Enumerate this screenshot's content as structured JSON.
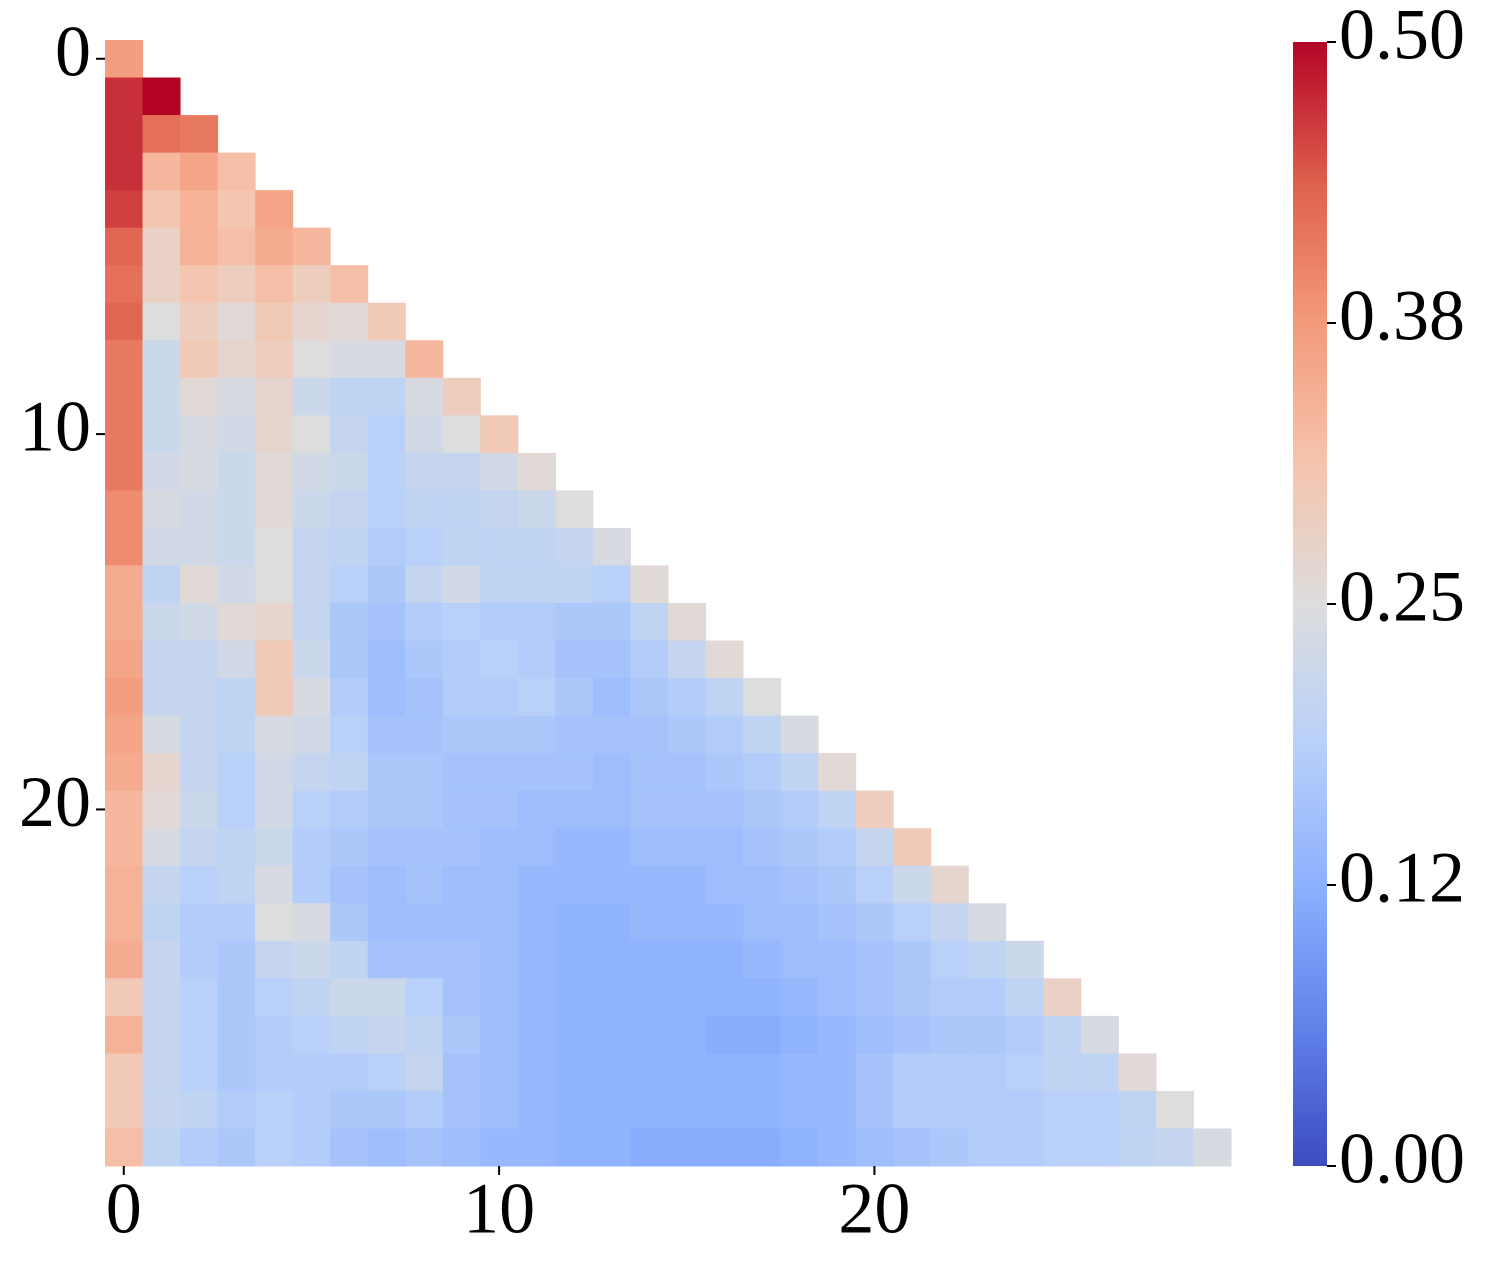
{
  "chart_data": {
    "type": "heatmap",
    "colormap": "coolwarm",
    "zlim": [
      0,
      0.5
    ],
    "zticks": [
      {
        "value": 0,
        "label": "0.00"
      },
      {
        "value": 0.125,
        "label": "0.12"
      },
      {
        "value": 0.25,
        "label": "0.25"
      },
      {
        "value": 0.375,
        "label": "0.38"
      },
      {
        "value": 0.5,
        "label": "0.50"
      }
    ],
    "xticks": [
      0,
      10,
      20
    ],
    "yticks": [
      0,
      10,
      20
    ],
    "z": [
      [
        0.37
      ],
      [
        0.47,
        0.5
      ],
      [
        0.47,
        0.42,
        0.41
      ],
      [
        0.47,
        0.33,
        0.36,
        0.32
      ],
      [
        0.46,
        0.31,
        0.34,
        0.31,
        0.36
      ],
      [
        0.43,
        0.28,
        0.34,
        0.32,
        0.35,
        0.33
      ],
      [
        0.42,
        0.28,
        0.31,
        0.29,
        0.32,
        0.29,
        0.32
      ],
      [
        0.43,
        0.25,
        0.29,
        0.26,
        0.3,
        0.27,
        0.26,
        0.3
      ],
      [
        0.41,
        0.22,
        0.3,
        0.27,
        0.29,
        0.25,
        0.24,
        0.24,
        0.33
      ],
      [
        0.41,
        0.22,
        0.26,
        0.24,
        0.27,
        0.22,
        0.2,
        0.2,
        0.24,
        0.29
      ],
      [
        0.41,
        0.22,
        0.24,
        0.23,
        0.27,
        0.25,
        0.21,
        0.19,
        0.23,
        0.25,
        0.3
      ],
      [
        0.41,
        0.23,
        0.24,
        0.22,
        0.26,
        0.23,
        0.22,
        0.19,
        0.21,
        0.21,
        0.23,
        0.26
      ],
      [
        0.39,
        0.24,
        0.23,
        0.22,
        0.26,
        0.22,
        0.21,
        0.19,
        0.2,
        0.2,
        0.21,
        0.22,
        0.25
      ],
      [
        0.39,
        0.23,
        0.23,
        0.22,
        0.25,
        0.21,
        0.2,
        0.18,
        0.19,
        0.2,
        0.2,
        0.2,
        0.21,
        0.24
      ],
      [
        0.35,
        0.2,
        0.26,
        0.23,
        0.25,
        0.21,
        0.19,
        0.17,
        0.21,
        0.23,
        0.2,
        0.2,
        0.2,
        0.19,
        0.26
      ],
      [
        0.35,
        0.22,
        0.23,
        0.26,
        0.27,
        0.21,
        0.17,
        0.16,
        0.18,
        0.19,
        0.18,
        0.18,
        0.17,
        0.17,
        0.2,
        0.26
      ],
      [
        0.36,
        0.21,
        0.21,
        0.23,
        0.3,
        0.22,
        0.17,
        0.15,
        0.17,
        0.18,
        0.19,
        0.18,
        0.16,
        0.16,
        0.18,
        0.21,
        0.26
      ],
      [
        0.37,
        0.21,
        0.21,
        0.2,
        0.3,
        0.24,
        0.18,
        0.15,
        0.16,
        0.18,
        0.18,
        0.19,
        0.17,
        0.15,
        0.17,
        0.18,
        0.2,
        0.25
      ],
      [
        0.36,
        0.24,
        0.21,
        0.2,
        0.24,
        0.23,
        0.19,
        0.16,
        0.16,
        0.17,
        0.17,
        0.17,
        0.16,
        0.16,
        0.16,
        0.17,
        0.18,
        0.2,
        0.24
      ],
      [
        0.35,
        0.27,
        0.21,
        0.19,
        0.23,
        0.21,
        0.2,
        0.17,
        0.17,
        0.16,
        0.16,
        0.16,
        0.16,
        0.15,
        0.16,
        0.16,
        0.17,
        0.18,
        0.2,
        0.26
      ],
      [
        0.33,
        0.26,
        0.22,
        0.19,
        0.23,
        0.19,
        0.18,
        0.17,
        0.17,
        0.16,
        0.16,
        0.15,
        0.15,
        0.15,
        0.16,
        0.16,
        0.16,
        0.17,
        0.18,
        0.2,
        0.29
      ],
      [
        0.33,
        0.24,
        0.21,
        0.2,
        0.22,
        0.18,
        0.17,
        0.16,
        0.16,
        0.16,
        0.15,
        0.15,
        0.14,
        0.14,
        0.15,
        0.15,
        0.15,
        0.16,
        0.17,
        0.18,
        0.21,
        0.3
      ],
      [
        0.34,
        0.21,
        0.19,
        0.2,
        0.24,
        0.18,
        0.16,
        0.15,
        0.16,
        0.15,
        0.15,
        0.14,
        0.14,
        0.14,
        0.14,
        0.14,
        0.15,
        0.15,
        0.16,
        0.17,
        0.19,
        0.22,
        0.27
      ],
      [
        0.34,
        0.2,
        0.18,
        0.18,
        0.25,
        0.24,
        0.17,
        0.15,
        0.15,
        0.15,
        0.15,
        0.14,
        0.13,
        0.13,
        0.14,
        0.14,
        0.14,
        0.15,
        0.15,
        0.16,
        0.17,
        0.19,
        0.21,
        0.24
      ],
      [
        0.35,
        0.21,
        0.18,
        0.17,
        0.21,
        0.22,
        0.2,
        0.16,
        0.16,
        0.16,
        0.15,
        0.14,
        0.13,
        0.13,
        0.13,
        0.13,
        0.13,
        0.14,
        0.15,
        0.15,
        0.16,
        0.17,
        0.19,
        0.2,
        0.22
      ],
      [
        0.3,
        0.21,
        0.19,
        0.17,
        0.19,
        0.2,
        0.22,
        0.22,
        0.19,
        0.16,
        0.15,
        0.14,
        0.13,
        0.13,
        0.13,
        0.13,
        0.13,
        0.13,
        0.14,
        0.15,
        0.16,
        0.17,
        0.18,
        0.18,
        0.2,
        0.28
      ],
      [
        0.34,
        0.21,
        0.19,
        0.17,
        0.18,
        0.19,
        0.2,
        0.21,
        0.2,
        0.17,
        0.15,
        0.14,
        0.13,
        0.13,
        0.13,
        0.13,
        0.12,
        0.12,
        0.13,
        0.14,
        0.15,
        0.16,
        0.17,
        0.17,
        0.18,
        0.2,
        0.24
      ],
      [
        0.3,
        0.21,
        0.19,
        0.17,
        0.18,
        0.18,
        0.18,
        0.19,
        0.21,
        0.16,
        0.15,
        0.14,
        0.13,
        0.13,
        0.13,
        0.13,
        0.13,
        0.13,
        0.14,
        0.14,
        0.16,
        0.18,
        0.18,
        0.18,
        0.19,
        0.2,
        0.2,
        0.26
      ],
      [
        0.3,
        0.21,
        0.2,
        0.18,
        0.19,
        0.18,
        0.17,
        0.17,
        0.18,
        0.16,
        0.15,
        0.14,
        0.13,
        0.13,
        0.13,
        0.13,
        0.13,
        0.13,
        0.14,
        0.14,
        0.16,
        0.18,
        0.18,
        0.18,
        0.18,
        0.19,
        0.19,
        0.2,
        0.25
      ],
      [
        0.32,
        0.2,
        0.18,
        0.17,
        0.19,
        0.18,
        0.16,
        0.15,
        0.16,
        0.15,
        0.14,
        0.14,
        0.13,
        0.13,
        0.12,
        0.12,
        0.12,
        0.12,
        0.13,
        0.14,
        0.15,
        0.16,
        0.17,
        0.18,
        0.18,
        0.19,
        0.19,
        0.2,
        0.21,
        0.24
      ]
    ]
  }
}
